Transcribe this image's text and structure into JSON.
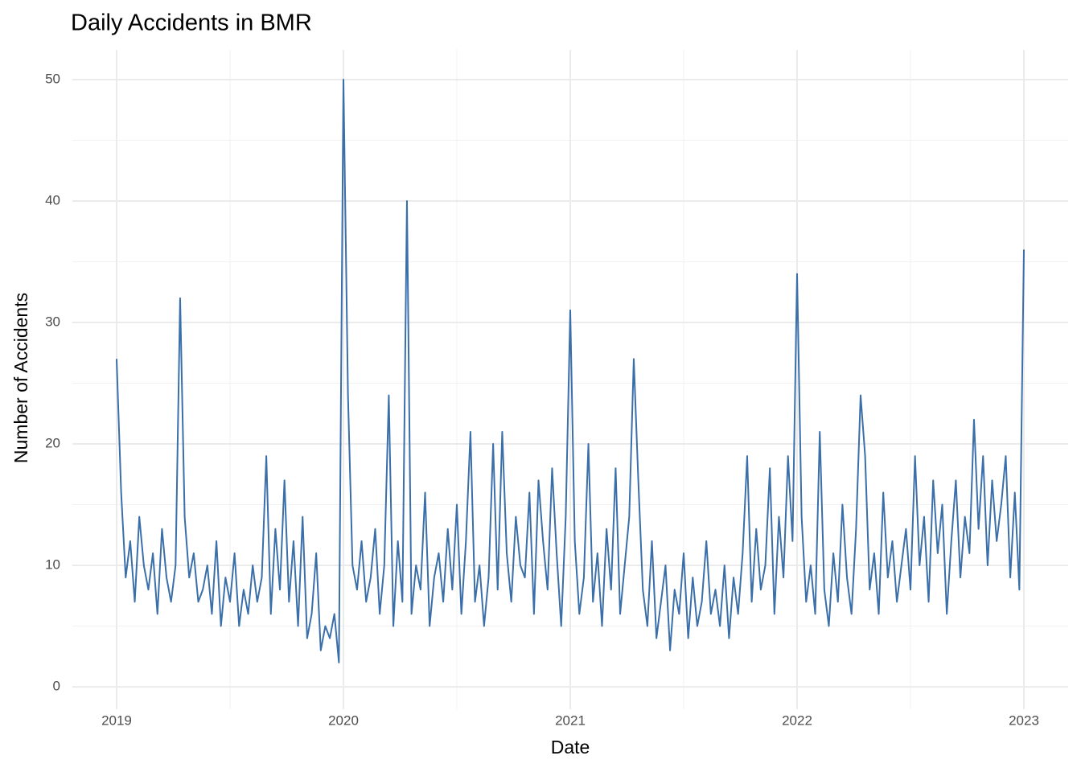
{
  "chart_data": {
    "type": "line",
    "title": "Daily Accidents in BMR",
    "x_label": "Date",
    "y_label": "Number of Accidents",
    "color": "#3b6faa",
    "grid": true,
    "xlim": [
      2018.805,
      2023.195
    ],
    "ylim": [
      -1.85,
      52.45
    ],
    "xticks": [
      2019,
      2020,
      2021,
      2022,
      2023
    ],
    "yticks": [
      0,
      10,
      20,
      30,
      40,
      50
    ],
    "x": [
      2019,
      2019.02,
      2019.04,
      2019.06,
      2019.08,
      2019.1,
      2019.12,
      2019.14,
      2019.16,
      2019.18,
      2019.2,
      2019.22,
      2019.24,
      2019.26,
      2019.28,
      2019.3,
      2019.32,
      2019.34,
      2019.36,
      2019.38,
      2019.4,
      2019.42,
      2019.44,
      2019.46,
      2019.48,
      2019.5,
      2019.52,
      2019.54,
      2019.56,
      2019.58,
      2019.6,
      2019.62,
      2019.64,
      2019.66,
      2019.68,
      2019.7,
      2019.72,
      2019.74,
      2019.76,
      2019.78,
      2019.8,
      2019.82,
      2019.84,
      2019.86,
      2019.88,
      2019.9,
      2019.92,
      2019.94,
      2019.96,
      2019.98,
      2020,
      2020.02,
      2020.04,
      2020.06,
      2020.08,
      2020.1,
      2020.12,
      2020.14,
      2020.16,
      2020.18,
      2020.2,
      2020.22,
      2020.24,
      2020.26,
      2020.28,
      2020.3,
      2020.32,
      2020.34,
      2020.36,
      2020.38,
      2020.4,
      2020.42,
      2020.44,
      2020.46,
      2020.48,
      2020.5,
      2020.52,
      2020.54,
      2020.56,
      2020.58,
      2020.6,
      2020.62,
      2020.64,
      2020.66,
      2020.68,
      2020.7,
      2020.72,
      2020.74,
      2020.76,
      2020.78,
      2020.8,
      2020.82,
      2020.84,
      2020.86,
      2020.88,
      2020.9,
      2020.92,
      2020.94,
      2020.96,
      2020.98,
      2021,
      2021.02,
      2021.04,
      2021.06,
      2021.08,
      2021.1,
      2021.12,
      2021.14,
      2021.16,
      2021.18,
      2021.2,
      2021.22,
      2021.24,
      2021.26,
      2021.28,
      2021.3,
      2021.32,
      2021.34,
      2021.36,
      2021.38,
      2021.4,
      2021.42,
      2021.44,
      2021.46,
      2021.48,
      2021.5,
      2021.52,
      2021.54,
      2021.56,
      2021.58,
      2021.6,
      2021.62,
      2021.64,
      2021.66,
      2021.68,
      2021.7,
      2021.72,
      2021.74,
      2021.76,
      2021.78,
      2021.8,
      2021.82,
      2021.84,
      2021.86,
      2021.88,
      2021.9,
      2021.92,
      2021.94,
      2021.96,
      2021.98,
      2022,
      2022.02,
      2022.04,
      2022.06,
      2022.08,
      2022.1,
      2022.12,
      2022.14,
      2022.16,
      2022.18,
      2022.2,
      2022.22,
      2022.24,
      2022.26,
      2022.28,
      2022.3,
      2022.32,
      2022.34,
      2022.36,
      2022.38,
      2022.4,
      2022.42,
      2022.44,
      2022.46,
      2022.48,
      2022.5,
      2022.52,
      2022.54,
      2022.56,
      2022.58,
      2022.6,
      2022.62,
      2022.64,
      2022.66,
      2022.68,
      2022.7,
      2022.72,
      2022.74,
      2022.76,
      2022.78,
      2022.8,
      2022.82,
      2022.84,
      2022.86,
      2022.88,
      2022.9,
      2022.92,
      2022.94,
      2022.96,
      2022.98,
      2023
    ],
    "values": [
      27,
      16,
      9,
      12,
      7,
      14,
      10,
      8,
      11,
      6,
      13,
      9,
      7,
      10,
      32,
      14,
      9,
      11,
      7,
      8,
      10,
      6,
      12,
      5,
      9,
      7,
      11,
      5,
      8,
      6,
      10,
      7,
      9,
      19,
      6,
      13,
      8,
      17,
      7,
      12,
      5,
      14,
      4,
      6,
      11,
      3,
      5,
      4,
      6,
      2,
      50,
      24,
      10,
      8,
      12,
      7,
      9,
      13,
      6,
      10,
      24,
      5,
      12,
      7,
      40,
      6,
      10,
      8,
      16,
      5,
      9,
      11,
      7,
      13,
      8,
      15,
      6,
      12,
      21,
      7,
      10,
      5,
      9,
      20,
      8,
      21,
      11,
      7,
      14,
      10,
      9,
      16,
      6,
      17,
      12,
      8,
      18,
      11,
      5,
      14,
      31,
      12,
      6,
      9,
      20,
      7,
      11,
      5,
      13,
      8,
      18,
      6,
      10,
      14,
      27,
      17,
      8,
      5,
      12,
      4,
      7,
      10,
      3,
      8,
      6,
      11,
      4,
      9,
      5,
      7,
      12,
      6,
      8,
      5,
      10,
      4,
      9,
      6,
      11,
      19,
      7,
      13,
      8,
      10,
      18,
      6,
      14,
      9,
      19,
      12,
      34,
      14,
      7,
      10,
      6,
      21,
      8,
      5,
      11,
      7,
      15,
      9,
      6,
      13,
      24,
      19,
      8,
      11,
      6,
      16,
      9,
      12,
      7,
      10,
      13,
      8,
      19,
      10,
      14,
      7,
      17,
      11,
      15,
      6,
      12,
      17,
      9,
      14,
      11,
      22,
      13,
      19,
      10,
      17,
      12,
      15,
      19,
      9,
      16,
      8,
      36
    ]
  }
}
